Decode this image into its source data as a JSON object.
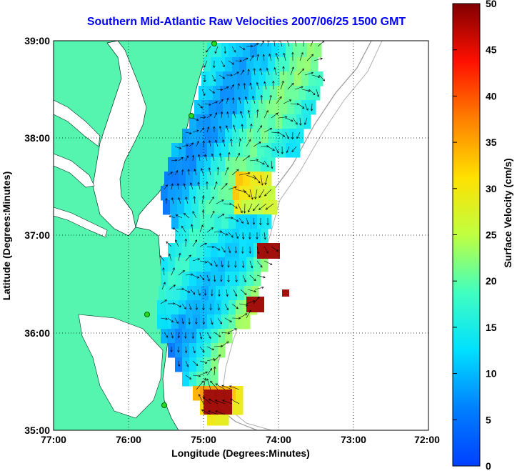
{
  "title": "Southern Mid-Atlantic Raw Velocities 2007/06/25 1500 GMT",
  "map": {
    "xlabel": "Longitude (Degrees:Minutes)",
    "ylabel": "Latitude (Degrees:Minutes)",
    "x_ticks": [
      "77:00",
      "76:00",
      "75:00",
      "74:00",
      "73:00",
      "72:00"
    ],
    "y_ticks": [
      "39:00",
      "38:00",
      "37:00",
      "36:00",
      "35:00"
    ],
    "lon_range": [
      -77,
      -72
    ],
    "lat_range": [
      35,
      39
    ],
    "land_color": "#55f5b0",
    "grid": "dotted"
  },
  "colorbar": {
    "label": "Surface Velocity (cm/s)",
    "ticks": [
      "0",
      "5",
      "10",
      "15",
      "20",
      "25",
      "30",
      "35",
      "40",
      "45",
      "50"
    ],
    "range": [
      0,
      50
    ],
    "colormap": "jet"
  }
}
